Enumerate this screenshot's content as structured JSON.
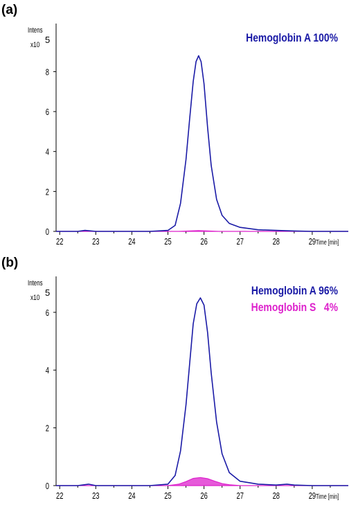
{
  "chart_data": [
    {
      "type": "line",
      "panel_label": "(a)",
      "ylabel": "Intens",
      "y_multiplier": "x10",
      "y_multiplier_exp": "5",
      "xlabel": "Time [min]",
      "xlim": [
        21.9,
        30.0
      ],
      "ylim": [
        0,
        10.2
      ],
      "x_ticks": [
        22,
        23,
        24,
        25,
        26,
        27,
        28,
        29
      ],
      "y_ticks": [
        0,
        2,
        4,
        6,
        8
      ],
      "grid": false,
      "legend_placement": "top-right",
      "series": [
        {
          "name": "Hemoglobin A 100%",
          "color": "#1a1aa6",
          "fill": false,
          "x": [
            21.9,
            22.5,
            22.7,
            23.0,
            24.5,
            25.0,
            25.2,
            25.35,
            25.5,
            25.6,
            25.7,
            25.78,
            25.85,
            25.92,
            26.0,
            26.1,
            26.2,
            26.35,
            26.5,
            26.7,
            27.0,
            27.5,
            28.0,
            28.5,
            29.0,
            30.0
          ],
          "y": [
            0.0,
            0.0,
            0.05,
            0.0,
            0.0,
            0.05,
            0.3,
            1.4,
            3.6,
            5.6,
            7.5,
            8.5,
            8.8,
            8.5,
            7.4,
            5.2,
            3.3,
            1.6,
            0.8,
            0.4,
            0.2,
            0.08,
            0.05,
            0.02,
            0.0,
            0.0
          ]
        },
        {
          "name": "",
          "color": "#dd22cc",
          "fill": true,
          "x": [
            21.9,
            25.3,
            25.6,
            25.85,
            26.1,
            26.4,
            30.0
          ],
          "y": [
            0.0,
            0.0,
            0.02,
            0.04,
            0.02,
            0.0,
            0.0
          ]
        }
      ]
    },
    {
      "type": "line",
      "panel_label": "(b)",
      "ylabel": "Intens",
      "y_multiplier": "x10",
      "y_multiplier_exp": "5",
      "xlabel": "Time [min]",
      "xlim": [
        21.9,
        30.0
      ],
      "ylim": [
        0,
        7.1
      ],
      "x_ticks": [
        22,
        23,
        24,
        25,
        26,
        27,
        28,
        29
      ],
      "y_ticks": [
        0,
        2,
        4,
        6
      ],
      "grid": false,
      "legend_placement": "top-right",
      "series": [
        {
          "name": "Hemoglobin A 96%",
          "color": "#1a1aa6",
          "fill": false,
          "x": [
            21.9,
            22.5,
            22.8,
            23.0,
            24.5,
            25.0,
            25.2,
            25.35,
            25.5,
            25.6,
            25.7,
            25.8,
            25.9,
            26.0,
            26.1,
            26.2,
            26.35,
            26.5,
            26.7,
            27.0,
            27.5,
            28.0,
            28.3,
            28.5,
            29.0,
            30.0
          ],
          "y": [
            0.0,
            0.0,
            0.05,
            0.0,
            0.0,
            0.05,
            0.35,
            1.2,
            2.8,
            4.2,
            5.6,
            6.3,
            6.5,
            6.25,
            5.3,
            3.9,
            2.2,
            1.1,
            0.45,
            0.15,
            0.05,
            0.02,
            0.05,
            0.02,
            0.0,
            0.0
          ]
        },
        {
          "name": "Hemoglobin S   4%",
          "color": "#dd22cc",
          "fill": true,
          "x": [
            21.9,
            25.0,
            25.3,
            25.5,
            25.7,
            25.9,
            26.1,
            26.3,
            26.5,
            26.7,
            27.0,
            30.0
          ],
          "y": [
            0.0,
            0.0,
            0.05,
            0.14,
            0.25,
            0.28,
            0.24,
            0.15,
            0.07,
            0.03,
            0.0,
            0.0
          ]
        }
      ]
    }
  ]
}
